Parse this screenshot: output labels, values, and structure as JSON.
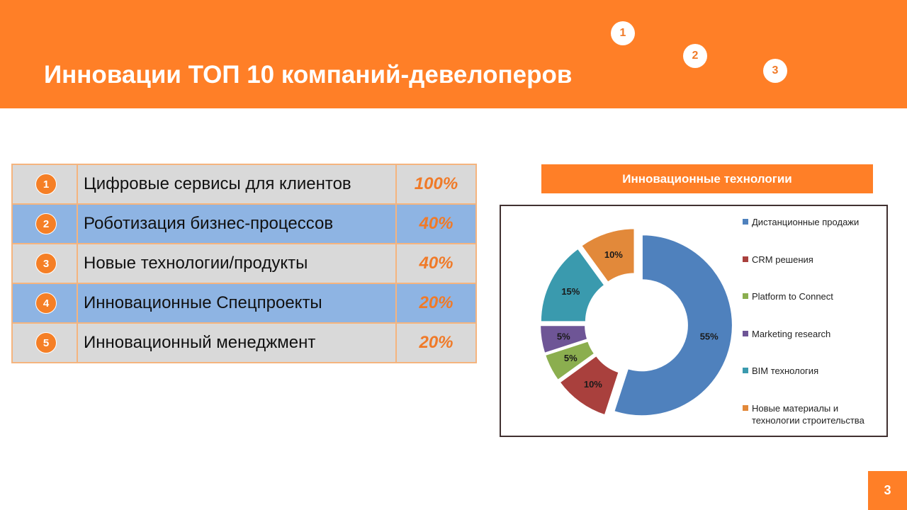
{
  "header": {
    "title": "Инновации ТОП 10 компаний-девелоперов",
    "badges": [
      "1",
      "2",
      "3"
    ],
    "bg_color": "#FF7F27"
  },
  "table": {
    "rows": [
      {
        "num": "1",
        "label": "Цифровые сервисы для клиентов",
        "value": "100%",
        "style": "gray"
      },
      {
        "num": "2",
        "label": "Роботизация  бизнес-процессов",
        "value": "40%",
        "style": "blue"
      },
      {
        "num": "3",
        "label": "Новые технологии/продукты",
        "value": "40%",
        "style": "gray"
      },
      {
        "num": "4",
        "label": "Инновационные Спецпроекты",
        "value": "20%",
        "style": "blue"
      },
      {
        "num": "5",
        "label": "Инновационный менеджмент",
        "value": "20%",
        "style": "gray"
      }
    ]
  },
  "chart_data": {
    "type": "pie",
    "variant": "donut",
    "title": "Инновационные  технологии",
    "categories": [
      "Дистанционные продажи",
      "CRM решения",
      "Platform to Connect",
      "Marketing research",
      "BIM технология",
      "Новые материалы и технологии строительства"
    ],
    "values": [
      55,
      10,
      5,
      5,
      15,
      10
    ],
    "labels": [
      "55%",
      "10%",
      "5%",
      "5%",
      "15%",
      "10%"
    ],
    "colors": [
      "#4F81BD",
      "#A9403D",
      "#8BAE4F",
      "#6E5596",
      "#3A9AAE",
      "#E2893A"
    ],
    "legend_position": "right"
  },
  "page": {
    "number": "3"
  }
}
